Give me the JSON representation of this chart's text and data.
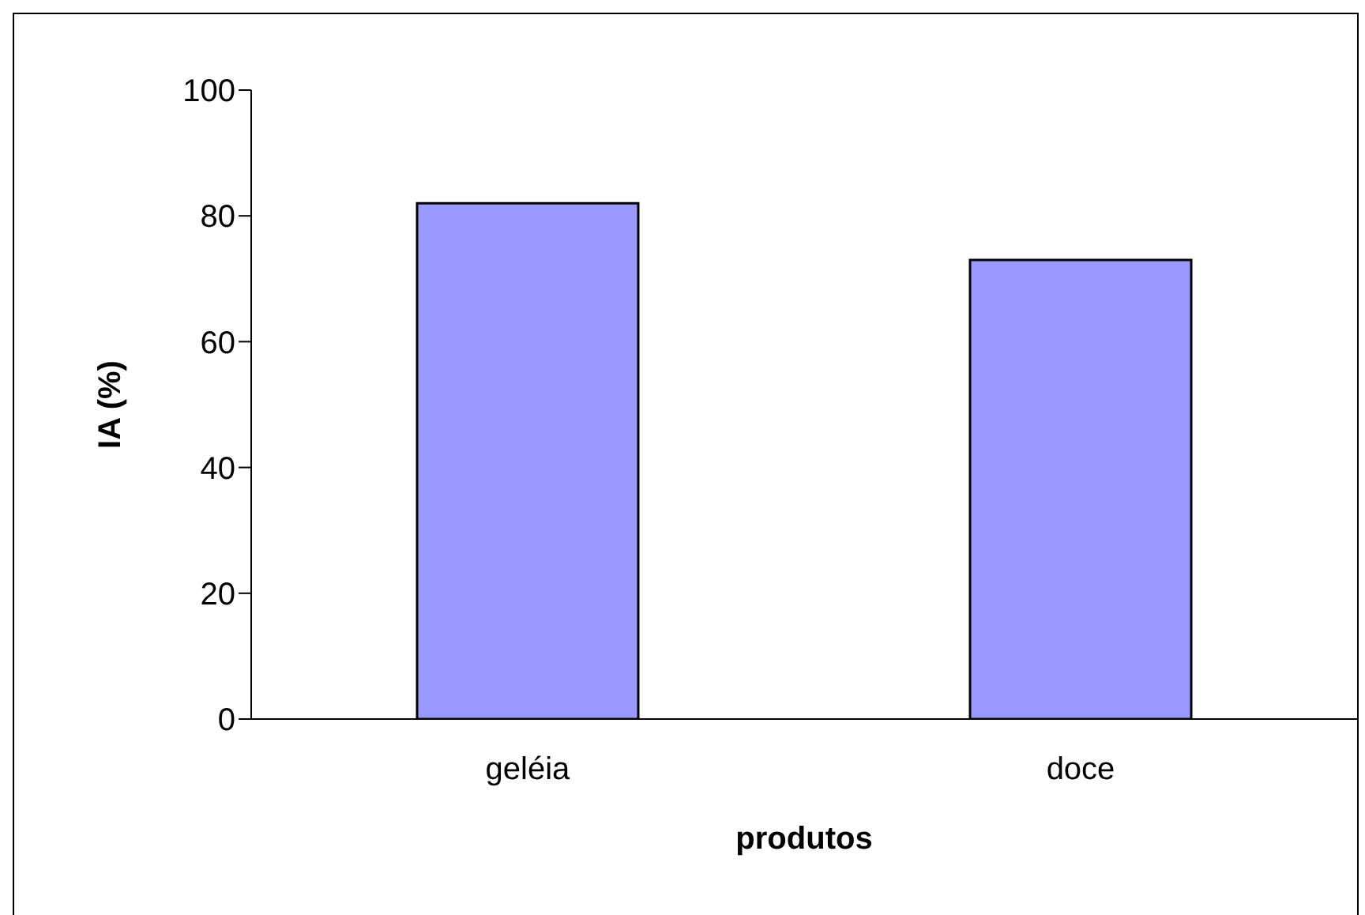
{
  "chart_data": {
    "type": "bar",
    "xlabel": "produtos",
    "ylabel": "IA (%)",
    "categories": [
      "geléia",
      "doce"
    ],
    "values": [
      82,
      73
    ],
    "color": "#9999ff",
    "ylim": [
      0,
      100
    ],
    "yticks": [
      0,
      20,
      40,
      60,
      80,
      100
    ],
    "grid": false,
    "legend": false
  }
}
